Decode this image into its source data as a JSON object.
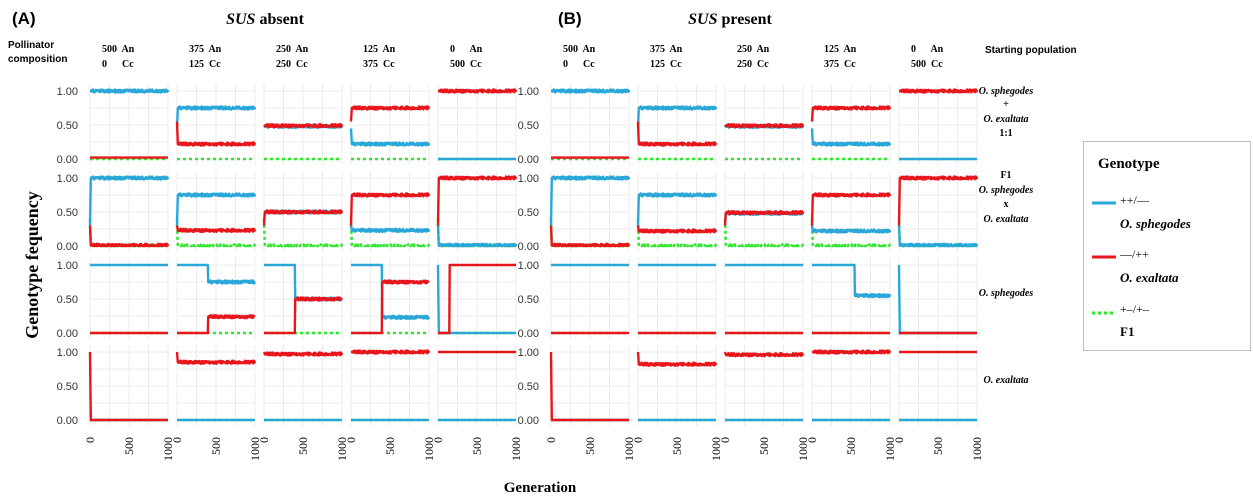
{
  "panel_labels": [
    "(A)",
    "(B)"
  ],
  "panel_titles": [
    {
      "italic": "SUS",
      "rest": "absent"
    },
    {
      "italic": "SUS",
      "rest": "present"
    }
  ],
  "pollinator_label": [
    "Pollinator",
    "composition"
  ],
  "starting_population_label": "Starting population",
  "columns": [
    {
      "top": "500  An",
      "bottom": "0      Cc"
    },
    {
      "top": "375  An",
      "bottom": "125  Cc"
    },
    {
      "top": "250  An",
      "bottom": "250  Cc"
    },
    {
      "top": "125  An",
      "bottom": "375  Cc"
    },
    {
      "top": "0      An",
      "bottom": "500  Cc"
    }
  ],
  "row_labels": [
    {
      "lines": [
        {
          "t": "O. sphegodes",
          "i": true
        },
        {
          "t": "+",
          "i": false
        },
        {
          "t": "O. exaltata",
          "i": true
        },
        {
          "t": "1:1",
          "i": false
        }
      ]
    },
    {
      "lines": [
        {
          "t": "F1",
          "i": false
        },
        {
          "t": "O. sphegodes",
          "i": true
        },
        {
          "t": "x",
          "i": false
        },
        {
          "t": "O. exaltata",
          "i": true
        }
      ]
    },
    {
      "lines": [
        {
          "t": "O. sphegodes",
          "i": true
        }
      ]
    },
    {
      "lines": [
        {
          "t": "O. exaltata",
          "i": true
        }
      ]
    }
  ],
  "y_axis_title": "Genotype fequency",
  "x_axis_title": "Generation",
  "y_ticks": [
    "1.00",
    "0.50",
    "0.00"
  ],
  "x_ticks": [
    "0",
    "500",
    "1000"
  ],
  "legend": {
    "title": "Genotype",
    "items": [
      {
        "code": "++/––",
        "name": "O. sphegodes",
        "italic": true,
        "color": "#2aa7d9",
        "style": "solid"
      },
      {
        "code": "––/++",
        "name": "O. exaltata",
        "italic": true,
        "color": "#e8151b",
        "style": "solid"
      },
      {
        "code": "+–/+–",
        "name": "F1",
        "italic": false,
        "color": "#2ee82e",
        "style": "dotted"
      }
    ]
  },
  "colors": {
    "sphegodes": "#2aa7d9",
    "exaltata": "#e8151b",
    "f1": "#2ee82e",
    "grid": "#ebebeb"
  },
  "chart_data": {
    "type": "line",
    "x_range": [
      0,
      1000
    ],
    "y_range": [
      0,
      1
    ],
    "series_names": [
      "++/–– O. sphegodes",
      "––/++ O. exaltata",
      "+–/+– F1"
    ],
    "panels": {
      "A": [
        [
          [
            [
              1,
              1,
              0,
              1
            ],
            [
              0.02,
              0.02,
              0,
              0
            ],
            [
              0,
              0,
              0,
              0
            ]
          ],
          [
            [
              0.45,
              0.75,
              0,
              1
            ],
            [
              0.55,
              0.22,
              0,
              1
            ],
            [
              0,
              0,
              0,
              0
            ]
          ],
          [
            [
              0.5,
              0.48,
              0,
              1
            ],
            [
              0.5,
              0.49,
              0,
              1
            ],
            [
              0,
              0,
              0,
              0
            ]
          ],
          [
            [
              0.45,
              0.22,
              0,
              1
            ],
            [
              0.55,
              0.75,
              0,
              1
            ],
            [
              0,
              0,
              0,
              0
            ]
          ],
          [
            [
              0,
              0,
              0,
              0
            ],
            [
              1,
              1,
              0,
              1
            ],
            [
              0,
              0,
              0,
              0
            ]
          ]
        ],
        [
          [
            [
              0.3,
              1,
              0,
              1
            ],
            [
              0.3,
              0.01,
              0,
              1
            ],
            [
              0.4,
              0,
              0,
              1
            ]
          ],
          [
            [
              0.3,
              0.75,
              0,
              1
            ],
            [
              0.3,
              0.23,
              0,
              1
            ],
            [
              0.4,
              0,
              0,
              1
            ]
          ],
          [
            [
              0.3,
              0.5,
              0,
              1
            ],
            [
              0.3,
              0.5,
              0,
              1
            ],
            [
              0.4,
              0,
              0,
              1
            ]
          ],
          [
            [
              0.3,
              0.23,
              0,
              1
            ],
            [
              0.3,
              0.75,
              0,
              1
            ],
            [
              0.4,
              0,
              0,
              1
            ]
          ],
          [
            [
              0.3,
              0.01,
              0,
              1
            ],
            [
              0.3,
              1,
              0,
              1
            ],
            [
              0.4,
              0,
              0,
              1
            ]
          ]
        ],
        [
          [
            [
              1,
              1,
              0,
              0
            ],
            [
              0,
              0,
              0,
              0
            ],
            [
              0,
              0,
              0,
              0
            ]
          ],
          [
            [
              1,
              0.75,
              400,
              1
            ],
            [
              0,
              0.24,
              400,
              1
            ],
            [
              0,
              0,
              0,
              0
            ]
          ],
          [
            [
              1,
              0.5,
              400,
              1
            ],
            [
              0,
              0.5,
              400,
              1
            ],
            [
              0,
              0,
              0,
              0
            ]
          ],
          [
            [
              1,
              0.23,
              400,
              1
            ],
            [
              0,
              0.75,
              400,
              1
            ],
            [
              0,
              0,
              0,
              0
            ]
          ],
          [
            [
              1,
              0,
              0,
              0
            ],
            [
              0,
              1,
              150,
              0
            ],
            [
              0,
              0,
              0,
              0
            ]
          ]
        ],
        [
          [
            [
              0,
              0,
              0,
              0
            ],
            [
              1,
              0,
              0,
              0
            ],
            [
              0,
              0,
              0,
              0
            ]
          ],
          [
            [
              0,
              0,
              0,
              0
            ],
            [
              1,
              0.85,
              0,
              1
            ],
            [
              0,
              0,
              0,
              0
            ]
          ],
          [
            [
              0,
              0,
              0,
              0
            ],
            [
              1,
              0.97,
              0,
              1
            ],
            [
              0,
              0,
              0,
              0
            ]
          ],
          [
            [
              0,
              0,
              0,
              0
            ],
            [
              1,
              1,
              0,
              1
            ],
            [
              0,
              0,
              0,
              0
            ]
          ],
          [
            [
              0,
              0,
              0,
              0
            ],
            [
              1,
              1,
              0,
              0
            ],
            [
              0,
              0,
              0,
              0
            ]
          ]
        ]
      ],
      "B": [
        [
          [
            [
              1,
              1,
              0,
              1
            ],
            [
              0.02,
              0.02,
              0,
              0
            ],
            [
              0,
              0,
              0,
              0
            ]
          ],
          [
            [
              0.45,
              0.75,
              0,
              1
            ],
            [
              0.55,
              0.22,
              0,
              1
            ],
            [
              0,
              0,
              0,
              0
            ]
          ],
          [
            [
              0.5,
              0.48,
              0,
              1
            ],
            [
              0.5,
              0.49,
              0,
              1
            ],
            [
              0,
              0,
              0,
              0
            ]
          ],
          [
            [
              0.45,
              0.22,
              0,
              1
            ],
            [
              0.55,
              0.75,
              0,
              1
            ],
            [
              0,
              0,
              0,
              0
            ]
          ],
          [
            [
              0,
              0,
              0,
              0
            ],
            [
              1,
              1,
              0,
              1
            ],
            [
              0,
              0,
              0,
              0
            ]
          ]
        ],
        [
          [
            [
              0.3,
              1,
              0,
              1
            ],
            [
              0.3,
              0.01,
              0,
              1
            ],
            [
              0.4,
              0,
              0,
              1
            ]
          ],
          [
            [
              0.3,
              0.75,
              0,
              1
            ],
            [
              0.3,
              0.22,
              0,
              1
            ],
            [
              0.4,
              0,
              0,
              1
            ]
          ],
          [
            [
              0.3,
              0.48,
              0,
              1
            ],
            [
              0.3,
              0.49,
              0,
              1
            ],
            [
              0.4,
              0,
              0,
              1
            ]
          ],
          [
            [
              0.3,
              0.22,
              0,
              1
            ],
            [
              0.3,
              0.75,
              0,
              1
            ],
            [
              0.4,
              0,
              0,
              1
            ]
          ],
          [
            [
              0.3,
              0.01,
              0,
              1
            ],
            [
              0.3,
              1,
              0,
              1
            ],
            [
              0.4,
              0,
              0,
              1
            ]
          ]
        ],
        [
          [
            [
              1,
              1,
              0,
              0
            ],
            [
              0,
              0,
              0,
              0
            ],
            [
              0,
              0,
              0,
              0
            ]
          ],
          [
            [
              1,
              1,
              0,
              0
            ],
            [
              0,
              0,
              0,
              0
            ],
            [
              0,
              0,
              0,
              0
            ]
          ],
          [
            [
              1,
              1,
              0,
              0
            ],
            [
              0,
              0,
              0,
              0
            ],
            [
              0,
              0,
              0,
              0
            ]
          ],
          [
            [
              1,
              0.55,
              550,
              1
            ],
            [
              0,
              0,
              0,
              0
            ],
            [
              0,
              0,
              0,
              0
            ]
          ],
          [
            [
              1,
              0,
              0,
              0
            ],
            [
              0,
              0,
              0,
              0
            ],
            [
              0,
              0,
              0,
              0
            ]
          ]
        ],
        [
          [
            [
              0,
              0,
              0,
              0
            ],
            [
              1,
              0,
              0,
              0
            ],
            [
              0,
              0,
              0,
              0
            ]
          ],
          [
            [
              0,
              0,
              0,
              0
            ],
            [
              1,
              0.82,
              0,
              1
            ],
            [
              0,
              0,
              0,
              0
            ]
          ],
          [
            [
              0,
              0,
              0,
              0
            ],
            [
              1,
              0.96,
              0,
              1
            ],
            [
              0,
              0,
              0,
              0
            ]
          ],
          [
            [
              0,
              0,
              0,
              0
            ],
            [
              1,
              1,
              0,
              1
            ],
            [
              0,
              0,
              0,
              0
            ]
          ],
          [
            [
              0,
              0,
              0,
              0
            ],
            [
              1,
              1,
              0,
              0
            ],
            [
              0,
              0,
              0,
              0
            ]
          ]
        ]
      ]
    },
    "series_encoding": "each panel series = [initial value, final plateau, switch generation, noisy plateau (1) or flat (0)]"
  }
}
